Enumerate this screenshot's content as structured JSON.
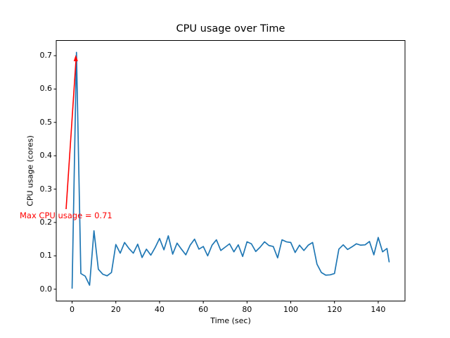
{
  "chart_data": {
    "type": "line",
    "title": "CPU usage over Time",
    "xlabel": "Time (sec)",
    "ylabel": "CPU usage (cores)",
    "xlim": [
      -7.25,
      152.25
    ],
    "ylim": [
      -0.0355,
      0.7455
    ],
    "xticks": [
      0,
      20,
      40,
      60,
      80,
      100,
      120,
      140
    ],
    "yticks": [
      0.0,
      0.1,
      0.2,
      0.3,
      0.4,
      0.5,
      0.6,
      0.7
    ],
    "grid": false,
    "legend": null,
    "x": [
      0,
      2,
      4,
      6,
      8,
      10,
      12,
      14,
      16,
      18,
      20,
      22,
      24,
      26,
      28,
      30,
      32,
      34,
      36,
      38,
      40,
      42,
      44,
      46,
      48,
      50,
      52,
      54,
      56,
      58,
      60,
      62,
      64,
      66,
      68,
      70,
      72,
      74,
      76,
      78,
      80,
      82,
      84,
      86,
      88,
      90,
      92,
      94,
      96,
      98,
      100,
      102,
      104,
      106,
      108,
      110,
      112,
      114,
      116,
      118,
      120,
      122,
      124,
      126,
      128,
      130,
      132,
      134,
      136,
      138,
      140,
      142,
      144,
      145
    ],
    "series": [
      {
        "name": "CPU usage",
        "color": "#1f77b4",
        "values": [
          0.003,
          0.71,
          0.047,
          0.039,
          0.012,
          0.175,
          0.06,
          0.045,
          0.04,
          0.05,
          0.134,
          0.108,
          0.14,
          0.122,
          0.108,
          0.135,
          0.095,
          0.12,
          0.102,
          0.125,
          0.152,
          0.118,
          0.16,
          0.105,
          0.138,
          0.12,
          0.103,
          0.132,
          0.15,
          0.12,
          0.128,
          0.1,
          0.132,
          0.148,
          0.116,
          0.126,
          0.136,
          0.112,
          0.133,
          0.098,
          0.142,
          0.136,
          0.113,
          0.126,
          0.142,
          0.131,
          0.128,
          0.094,
          0.148,
          0.142,
          0.14,
          0.11,
          0.132,
          0.116,
          0.132,
          0.14,
          0.075,
          0.05,
          0.042,
          0.043,
          0.047,
          0.12,
          0.133,
          0.119,
          0.127,
          0.136,
          0.132,
          0.133,
          0.143,
          0.103,
          0.155,
          0.112,
          0.122,
          0.082
        ]
      }
    ],
    "annotation": {
      "text": "Max CPU usage = 0.71",
      "color": "#ff0000",
      "target": {
        "x": 2,
        "y": 0.71
      }
    },
    "axis_color": "#000000",
    "background": "#ffffff"
  }
}
